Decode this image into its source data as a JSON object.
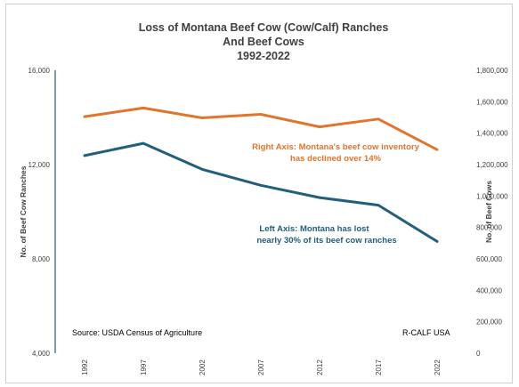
{
  "chart_data": {
    "type": "line",
    "title_lines": [
      "Loss of Montana Beef Cow (Cow/Calf) Ranches",
      "And Beef Cows",
      "1992-2022"
    ],
    "x": [
      "1992",
      "1997",
      "2002",
      "2007",
      "2012",
      "2017",
      "2022"
    ],
    "series": [
      {
        "axis": "left",
        "color": "#215f7a",
        "values": [
          12380,
          12900,
          11800,
          11120,
          10600,
          10280,
          8740
        ]
      },
      {
        "axis": "right",
        "color": "#e0752d",
        "values": [
          1505000,
          1560000,
          1497000,
          1520000,
          1440000,
          1490000,
          1295000
        ]
      }
    ],
    "ylabel_left": "No. of Beef Cow Ranches",
    "ylabel_right": "No. of Beef Cows",
    "ylim_left": [
      4000,
      16000
    ],
    "ylim_right": [
      0,
      1800000
    ],
    "yticks_left": [
      "16,000",
      "12,000",
      "8,000",
      "4,000"
    ],
    "yticks_right": [
      "1,800,000",
      "1,600,000",
      "1,400,000",
      "1,200,000",
      "1,000,000",
      "800,000",
      "600,000",
      "400,000",
      "200,000",
      "0"
    ],
    "annotations": {
      "right_axis": [
        "Right Axis:  Montana's beef cow inventory",
        "has declined over 14%"
      ],
      "left_axis": [
        "Left Axis:  Montana has lost",
        "nearly 30% of its beef cow ranches"
      ]
    },
    "source": "Source:  USDA Census of Agriculture",
    "credit": "R-CALF USA",
    "grid": false
  }
}
